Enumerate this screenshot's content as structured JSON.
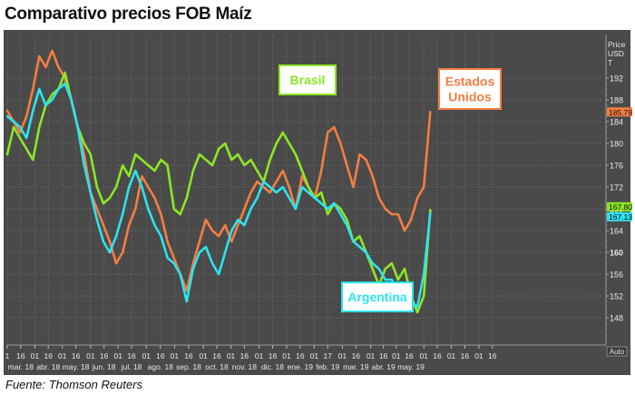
{
  "header": {
    "title": "Comparativo precios FOB Maíz"
  },
  "footer": {
    "source": "Fuente: Thomson Reuters"
  },
  "colors": {
    "brasil": "#8ee625",
    "eeuu": "#f47e42",
    "argentina": "#2de3ee",
    "background": "#4a4a4a"
  },
  "chart_data": {
    "type": "line",
    "title": "Comparativo precios FOB Maíz",
    "xlabel": "",
    "ylabel": "Price USD T",
    "y_axis_label_lines": [
      "Price",
      "USD",
      "T"
    ],
    "ylim": [
      143,
      200
    ],
    "yticks": [
      148,
      152,
      156,
      160,
      164,
      168,
      172,
      176,
      180,
      184,
      188,
      192
    ],
    "ytick_labels": [
      "148",
      "152",
      "156",
      "160",
      "164",
      "168",
      "172",
      "176",
      "180",
      "184",
      "188",
      "192"
    ],
    "xlim": [
      0,
      93
    ],
    "x_unit": "week index starting 1 mar 2018",
    "day_ticks": [
      {
        "x": 0,
        "label": "1"
      },
      {
        "x": 2.1,
        "label": "16"
      },
      {
        "x": 4.3,
        "label": "01"
      },
      {
        "x": 6.4,
        "label": "16"
      },
      {
        "x": 8.6,
        "label": "01"
      },
      {
        "x": 10.7,
        "label": "16"
      },
      {
        "x": 13,
        "label": "01"
      },
      {
        "x": 15.1,
        "label": "16"
      },
      {
        "x": 17.3,
        "label": "01"
      },
      {
        "x": 19.4,
        "label": "16"
      },
      {
        "x": 21.7,
        "label": "01"
      },
      {
        "x": 23.9,
        "label": "16"
      },
      {
        "x": 26.1,
        "label": "01"
      },
      {
        "x": 28.3,
        "label": "16"
      },
      {
        "x": 30.6,
        "label": "01"
      },
      {
        "x": 32.7,
        "label": "16"
      },
      {
        "x": 34.9,
        "label": "01"
      },
      {
        "x": 37,
        "label": "16"
      },
      {
        "x": 39.3,
        "label": "01"
      },
      {
        "x": 41.4,
        "label": "16"
      },
      {
        "x": 43.6,
        "label": "01"
      },
      {
        "x": 45.7,
        "label": "16"
      },
      {
        "x": 47.9,
        "label": "01"
      },
      {
        "x": 50,
        "label": "17"
      },
      {
        "x": 52.3,
        "label": "01"
      },
      {
        "x": 54.4,
        "label": "16"
      },
      {
        "x": 56.7,
        "label": "01"
      },
      {
        "x": 58.7,
        "label": "16"
      },
      {
        "x": 60.7,
        "label": "01"
      },
      {
        "x": 62.7,
        "label": "16"
      },
      {
        "x": 65,
        "label": "01"
      },
      {
        "x": 67.1,
        "label": "16"
      },
      {
        "x": 69.3,
        "label": "01"
      },
      {
        "x": 71.4,
        "label": "16"
      },
      {
        "x": 73.6,
        "label": "01"
      },
      {
        "x": 75.7,
        "label": "16"
      }
    ],
    "month_ticks": [
      {
        "x": 2.1,
        "label": "mar. 18"
      },
      {
        "x": 6.4,
        "label": "abr. 18"
      },
      {
        "x": 10.7,
        "label": "may. 18"
      },
      {
        "x": 15.1,
        "label": "jun. 18"
      },
      {
        "x": 19.4,
        "label": "jul. 18"
      },
      {
        "x": 23.9,
        "label": "ago. 18"
      },
      {
        "x": 28.3,
        "label": "sep. 18"
      },
      {
        "x": 32.7,
        "label": "oct. 18"
      },
      {
        "x": 37,
        "label": "nov. 18"
      },
      {
        "x": 41.4,
        "label": "dic. 18"
      },
      {
        "x": 45.7,
        "label": "ene. 19"
      },
      {
        "x": 50,
        "label": "feb. 19"
      },
      {
        "x": 54.4,
        "label": "mar. 19"
      },
      {
        "x": 58.7,
        "label": "abr. 19"
      },
      {
        "x": 63,
        "label": "may. 19"
      }
    ],
    "auto_label": "Auto",
    "series": [
      {
        "name": "Brasil",
        "label_lines": [
          "Brasil"
        ],
        "legend_pos": "top-center",
        "color": "#8ee625",
        "last_value": "167.80",
        "x": [
          0,
          1,
          2,
          3,
          4,
          5,
          6,
          7,
          8,
          9,
          10,
          11,
          12,
          13,
          14,
          15,
          16,
          17,
          18,
          19,
          20,
          21,
          22,
          23,
          24,
          25,
          26,
          27,
          28,
          29,
          30,
          31,
          32,
          33,
          34,
          35,
          36,
          37,
          38,
          39,
          40,
          41,
          42,
          43,
          44,
          45,
          46,
          47,
          48,
          49,
          50,
          51,
          52,
          53,
          54,
          55,
          56,
          57,
          58,
          59,
          60,
          61,
          62,
          63,
          64,
          65,
          66
        ],
        "values": [
          178,
          183,
          181,
          179,
          177,
          183,
          187,
          189,
          190,
          193,
          188,
          183,
          180,
          178,
          172,
          169,
          170,
          172,
          176,
          174,
          178,
          177,
          176,
          175,
          177,
          176,
          168,
          167,
          170,
          175,
          178,
          177,
          176,
          179,
          180,
          177,
          178,
          176,
          177,
          175,
          173,
          177,
          180,
          182,
          180,
          178,
          175,
          172,
          170,
          171,
          167,
          169,
          168,
          166,
          162,
          163,
          160,
          157,
          154,
          157,
          158,
          155,
          157,
          152,
          149,
          152,
          167.8
        ]
      },
      {
        "name": "Estados Unidos",
        "label_lines": [
          "Estados",
          "Unidos"
        ],
        "legend_pos": "top-right",
        "color": "#f47e42",
        "last_value": "185.79",
        "x": [
          0,
          1,
          2,
          3,
          4,
          5,
          6,
          7,
          8,
          9,
          10,
          11,
          12,
          13,
          14,
          15,
          16,
          17,
          18,
          19,
          20,
          21,
          22,
          23,
          24,
          25,
          26,
          27,
          28,
          29,
          30,
          31,
          32,
          33,
          34,
          35,
          36,
          37,
          38,
          39,
          40,
          41,
          42,
          43,
          44,
          45,
          46,
          47,
          48,
          49,
          50,
          51,
          52,
          53,
          54,
          55,
          56,
          57,
          58,
          59,
          60,
          61,
          62,
          63,
          64,
          65,
          66
        ],
        "values": [
          186,
          184,
          182,
          185,
          190,
          196,
          194,
          197,
          194,
          192,
          188,
          183,
          178,
          171,
          168,
          165,
          162,
          158,
          160,
          165,
          168,
          174,
          172,
          170,
          167,
          162,
          159,
          156,
          153,
          158,
          162,
          166,
          164,
          163,
          165,
          162,
          165,
          168,
          171,
          173,
          172,
          171,
          173,
          175,
          172,
          168,
          174,
          172,
          170,
          175,
          182,
          183,
          180,
          176,
          172,
          178,
          177,
          174,
          170,
          168,
          167,
          167,
          164,
          166,
          170,
          172,
          185.79
        ]
      },
      {
        "name": "Argentina",
        "label_lines": [
          "Argentina"
        ],
        "legend_pos": "bottom-center",
        "color": "#2de3ee",
        "last_value": "167.13",
        "x": [
          0,
          1,
          2,
          3,
          4,
          5,
          6,
          7,
          8,
          9,
          10,
          11,
          12,
          13,
          14,
          15,
          16,
          17,
          18,
          19,
          20,
          21,
          22,
          23,
          24,
          25,
          26,
          27,
          28,
          29,
          30,
          31,
          32,
          33,
          34,
          35,
          36,
          37,
          38,
          39,
          40,
          41,
          42,
          43,
          44,
          45,
          46,
          47,
          48,
          49,
          50,
          51,
          52,
          53,
          54,
          55,
          56,
          57,
          58,
          59,
          60,
          61,
          62,
          63,
          64,
          65,
          66
        ],
        "values": [
          185,
          184,
          183,
          181,
          186,
          190,
          187,
          188,
          190,
          191,
          188,
          183,
          176,
          171,
          166,
          162,
          160,
          163,
          167,
          172,
          175,
          172,
          168,
          165,
          163,
          159,
          158,
          156,
          151,
          157,
          160,
          161,
          158,
          156,
          160,
          164,
          166,
          165,
          168,
          170,
          173,
          172,
          171,
          172,
          170,
          168,
          172,
          171,
          170,
          169,
          168,
          169,
          167,
          165,
          162,
          161,
          160,
          158,
          157,
          155,
          155,
          153,
          152,
          151,
          150,
          156,
          167.13
        ]
      }
    ]
  }
}
